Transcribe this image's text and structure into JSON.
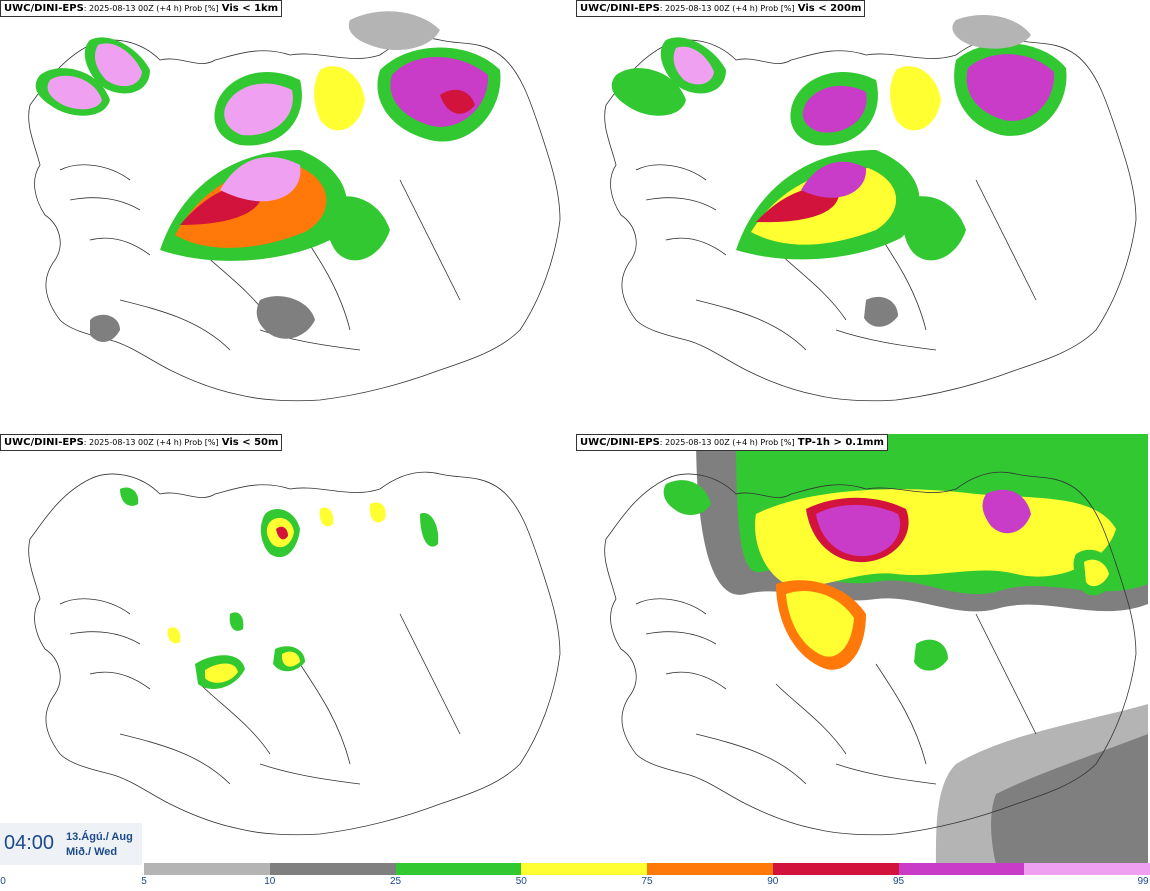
{
  "panels": [
    {
      "model": "UWC/DINI-EPS",
      "meta": ": 2025-08-13 00Z (+4 h) Prob [%]",
      "variable": "Vis < 1km"
    },
    {
      "model": "UWC/DINI-EPS",
      "meta": ": 2025-08-13 00Z (+4 h) Prob [%]",
      "variable": "Vis < 200m"
    },
    {
      "model": "UWC/DINI-EPS",
      "meta": ": 2025-08-13 00Z (+4 h) Prob [%]",
      "variable": "Vis < 50m"
    },
    {
      "model": "UWC/DINI-EPS",
      "meta": ": 2025-08-13 00Z (+4 h) Prob [%]",
      "variable": "TP-1h > 0.1mm"
    }
  ],
  "valid_time": {
    "time": "04:00",
    "date_line1": "13.Ágú./ Aug",
    "date_line2": "Mið./ Wed"
  },
  "legend": {
    "colors": [
      "#b4b4b4",
      "#7f7f7f",
      "#32c832",
      "#ffff32",
      "#ff780a",
      "#d2143c",
      "#c83cc8",
      "#f0a0f0"
    ],
    "ticks": [
      "0",
      "5",
      "10",
      "25",
      "50",
      "75",
      "90",
      "95",
      "99"
    ]
  }
}
